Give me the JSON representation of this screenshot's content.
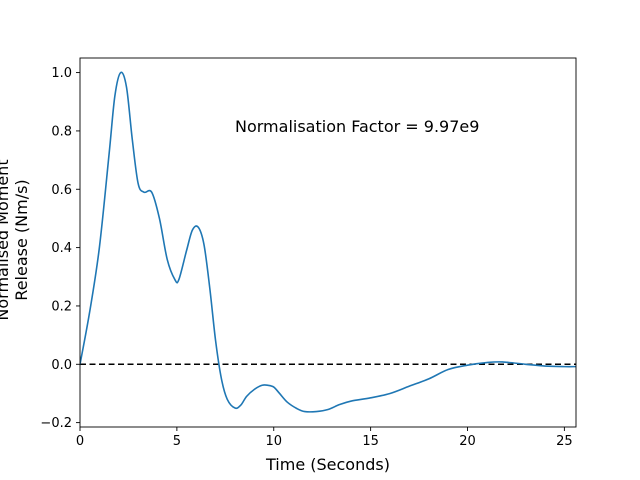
{
  "chart_data": {
    "type": "line",
    "title": "",
    "xlabel": "Time (Seconds)",
    "ylabel_lines": [
      "Normalised Moment",
      "Release (Nm/s)"
    ],
    "xlim": [
      0,
      25.6
    ],
    "ylim": [
      -0.215,
      1.05
    ],
    "xticks": [
      0,
      5,
      10,
      15,
      20,
      25
    ],
    "xtick_labels": [
      "0",
      "5",
      "10",
      "15",
      "20",
      "25"
    ],
    "yticks": [
      -0.2,
      0.0,
      0.2,
      0.4,
      0.6,
      0.8,
      1.0
    ],
    "ytick_labels": [
      "−0.2",
      "0.0",
      "0.2",
      "0.4",
      "0.6",
      "0.8",
      "1.0"
    ],
    "grid": false,
    "annotation": "Normalisation Factor = 9.97e9",
    "reference_line": {
      "y": 0.0,
      "style": "dashed",
      "color": "#000000"
    },
    "series": [
      {
        "color": "#1f77b4",
        "x": [
          0,
          0.5,
          1.0,
          1.5,
          1.8,
          2.1,
          2.4,
          2.7,
          3.0,
          3.3,
          3.7,
          4.1,
          4.5,
          4.9,
          5.1,
          5.5,
          5.8,
          6.1,
          6.4,
          6.7,
          7.0,
          7.3,
          7.6,
          8.0,
          8.3,
          8.6,
          9.0,
          9.4,
          9.7,
          10.0,
          10.3,
          10.7,
          11.2,
          11.6,
          12.2,
          12.8,
          13.4,
          14.0,
          15.0,
          16.0,
          17.0,
          18.0,
          19.0,
          20.0,
          21.0,
          21.8,
          23.0,
          24.0,
          25.0,
          25.6
        ],
        "y": [
          0.0,
          0.18,
          0.4,
          0.72,
          0.92,
          1.0,
          0.95,
          0.77,
          0.62,
          0.59,
          0.59,
          0.5,
          0.36,
          0.29,
          0.29,
          0.39,
          0.46,
          0.47,
          0.41,
          0.26,
          0.08,
          -0.05,
          -0.12,
          -0.15,
          -0.14,
          -0.11,
          -0.086,
          -0.072,
          -0.072,
          -0.078,
          -0.1,
          -0.13,
          -0.152,
          -0.162,
          -0.162,
          -0.155,
          -0.138,
          -0.126,
          -0.115,
          -0.1,
          -0.075,
          -0.05,
          -0.018,
          -0.003,
          0.006,
          0.008,
          0.0,
          -0.006,
          -0.008,
          -0.008
        ]
      }
    ]
  },
  "colors": {
    "line": "#1f77b4",
    "axes": "#000000",
    "background": "#ffffff"
  }
}
